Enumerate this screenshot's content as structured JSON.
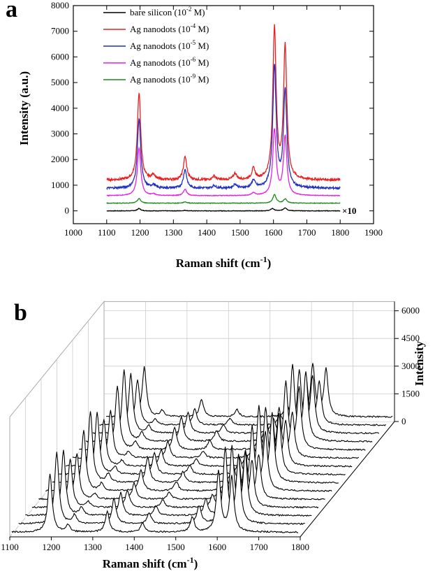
{
  "chart_data": [
    {
      "panel": "a",
      "type": "line",
      "xlabel": "Raman shift (cm",
      "xlabel_sup": "-1",
      "xlabel_end": ")",
      "ylabel": "Intensity (a.u.)",
      "xlim": [
        1000,
        1900
      ],
      "ylim": [
        -500,
        8000
      ],
      "xticks": [
        1000,
        1100,
        1200,
        1300,
        1400,
        1500,
        1600,
        1700,
        1800,
        1900
      ],
      "yticks": [
        0,
        1000,
        2000,
        3000,
        4000,
        5000,
        6000,
        7000,
        8000
      ],
      "annotation": "×10",
      "legend_position": "top-left",
      "x_range": [
        1100,
        1800
      ],
      "peak_width": 6,
      "series": [
        {
          "name_pre": "bare silicon   (10",
          "name_exp": "-2",
          "name_post": " M)",
          "color": "#000000",
          "baseline": 0,
          "noise": 10,
          "peaks": [
            [
              1197,
              90
            ],
            [
              1335,
              20
            ],
            [
              1597,
              90
            ],
            [
              1635,
              120
            ]
          ]
        },
        {
          "name_pre": "Ag nanodots (10",
          "name_exp": "-4",
          "name_post": " M)",
          "color": "#e8201f",
          "baseline": 1200,
          "noise": 45,
          "peaks": [
            [
              1197,
              3400
            ],
            [
              1240,
              200
            ],
            [
              1335,
              900
            ],
            [
              1422,
              150
            ],
            [
              1485,
              250
            ],
            [
              1540,
              420
            ],
            [
              1603,
              5850
            ],
            [
              1635,
              5150
            ]
          ]
        },
        {
          "name_pre": "Ag nanodots (10",
          "name_exp": "-5",
          "name_post": " M)",
          "color": "#1f2fbf",
          "baseline": 880,
          "noise": 40,
          "peaks": [
            [
              1197,
              2700
            ],
            [
              1240,
              120
            ],
            [
              1335,
              720
            ],
            [
              1422,
              100
            ],
            [
              1485,
              150
            ],
            [
              1540,
              300
            ],
            [
              1603,
              4750
            ],
            [
              1635,
              3780
            ]
          ]
        },
        {
          "name_pre": "Ag nanodots (10",
          "name_exp": "-6",
          "name_post": " M)",
          "color": "#e61fe6",
          "baseline": 590,
          "noise": 12,
          "peaks": [
            [
              1197,
              1850
            ],
            [
              1240,
              60
            ],
            [
              1335,
              250
            ],
            [
              1540,
              100
            ],
            [
              1603,
              2550
            ],
            [
              1635,
              2280
            ]
          ]
        },
        {
          "name_pre": "Ag nanodots (10",
          "name_exp": "-9",
          "name_post": " M)",
          "color": "#1a8a1a",
          "baseline": 300,
          "noise": 10,
          "peaks": [
            [
              1197,
              180
            ],
            [
              1335,
              50
            ],
            [
              1603,
              330
            ],
            [
              1635,
              160
            ]
          ]
        }
      ]
    },
    {
      "panel": "b",
      "type": "line",
      "xlabel": "Raman shift (cm",
      "xlabel_sup": "-1",
      "xlabel_end": ")",
      "zlabel": "Intensity",
      "xlim": [
        1100,
        1800
      ],
      "xticks": [
        1100,
        1200,
        1300,
        1400,
        1500,
        1600,
        1700,
        1800
      ],
      "zticks": [
        0,
        1500,
        3000,
        4500,
        6000
      ],
      "spectra_count": 15,
      "line_color": "#000000",
      "peak_width": 6,
      "peak_positions": [
        1197,
        1240,
        1335,
        1420,
        1540,
        1603,
        1635
      ],
      "peak_scales": [
        1,
        0.12,
        0.35,
        0.15,
        0.25,
        1.05,
        0.95
      ],
      "amplitude_range": [
        2400,
        3900
      ]
    }
  ]
}
